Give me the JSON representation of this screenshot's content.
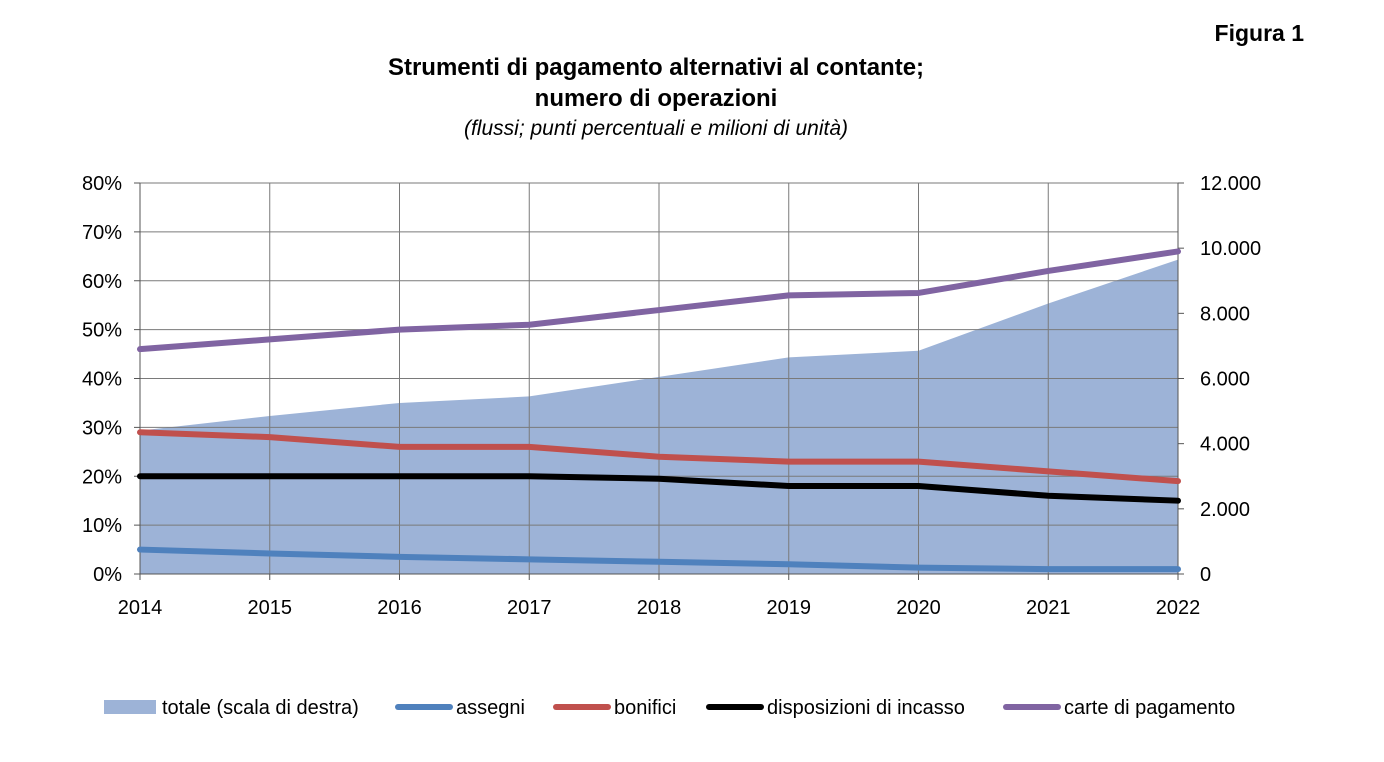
{
  "figure_label": "Figura 1",
  "chart_data": {
    "type": "line",
    "title_line1": "Strumenti di pagamento alternativi al contante;",
    "title_line2": "numero di operazioni",
    "subtitle": "(flussi; punti percentuali e milioni di unità)",
    "categories": [
      "2014",
      "2015",
      "2016",
      "2017",
      "2018",
      "2019",
      "2020",
      "2021",
      "2022"
    ],
    "y_left": {
      "ticks": [
        "0%",
        "10%",
        "20%",
        "30%",
        "40%",
        "50%",
        "60%",
        "70%",
        "80%"
      ],
      "lim": [
        0,
        80
      ],
      "unit": "percent"
    },
    "y_right": {
      "ticks": [
        "0",
        "2.000",
        "4.000",
        "6.000",
        "8.000",
        "10.000",
        "12.000"
      ],
      "lim": [
        0,
        12000
      ]
    },
    "grid": true,
    "legend_position": "bottom",
    "area": {
      "name": "totale (scala di destra)",
      "axis": "right",
      "color": "#9db3d7",
      "values": [
        4400,
        4850,
        5250,
        5450,
        6050,
        6650,
        6850,
        8300,
        9650
      ]
    },
    "series": [
      {
        "name": "assegni",
        "axis": "left",
        "color": "#4f81bd",
        "values": [
          5,
          4.2,
          3.5,
          3,
          2.5,
          2,
          1.3,
          1,
          1
        ]
      },
      {
        "name": "bonifici",
        "axis": "left",
        "color": "#c0504d",
        "values": [
          29,
          28,
          26,
          26,
          24,
          23,
          23,
          21,
          19
        ]
      },
      {
        "name": "disposizioni di incasso",
        "axis": "left",
        "color": "#000000",
        "values": [
          20,
          20,
          20,
          20,
          19.5,
          18,
          18,
          16,
          15
        ]
      },
      {
        "name": "carte di pagamento",
        "axis": "left",
        "color": "#8064a2",
        "values": [
          46,
          48,
          50,
          51,
          54,
          57,
          57.5,
          62,
          66
        ]
      }
    ]
  }
}
